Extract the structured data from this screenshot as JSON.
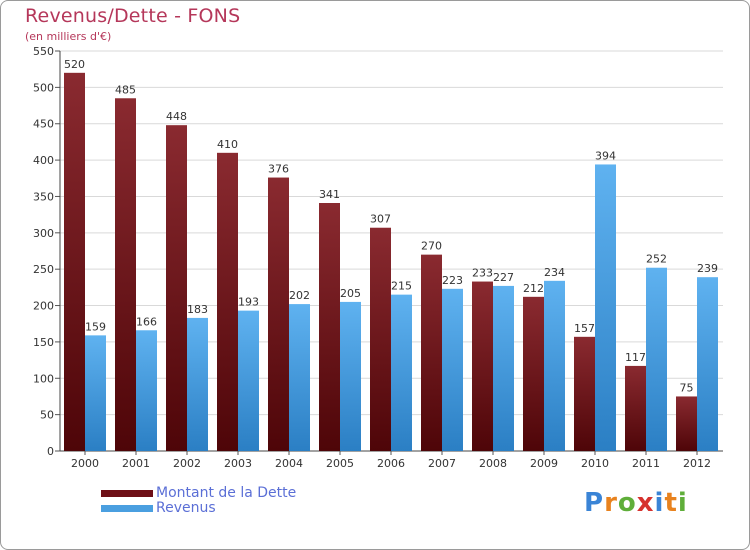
{
  "chart_data": {
    "type": "bar",
    "title": "Revenus/Dette - FONS",
    "subtitle": "(en milliers d'€)",
    "categories": [
      "2000",
      "2001",
      "2002",
      "2003",
      "2004",
      "2005",
      "2006",
      "2007",
      "2008",
      "2009",
      "2010",
      "2011",
      "2012"
    ],
    "series": [
      {
        "name": "Montant de la Dette",
        "color": "#6e0f16",
        "values": [
          520,
          485,
          448,
          410,
          376,
          341,
          307,
          270,
          233,
          212,
          157,
          117,
          75
        ]
      },
      {
        "name": "Revenus",
        "color": "#4a9fe0",
        "values": [
          159,
          166,
          183,
          193,
          202,
          205,
          215,
          223,
          227,
          234,
          394,
          252,
          239
        ]
      }
    ],
    "ylim": [
      0,
      550
    ],
    "yticks": [
      0,
      50,
      100,
      150,
      200,
      250,
      300,
      350,
      400,
      450,
      500,
      550
    ],
    "grid": true,
    "legend": "bottom-left",
    "xlabel": "",
    "ylabel": ""
  },
  "brand": {
    "logo_letters": [
      "P",
      "r",
      "o",
      "x",
      "i",
      "t",
      "i"
    ],
    "logo_colors": [
      "#3a84d6",
      "#e8821e",
      "#5fae3a",
      "#d6322e",
      "#3a84d6",
      "#e8821e",
      "#5fae3a"
    ]
  }
}
